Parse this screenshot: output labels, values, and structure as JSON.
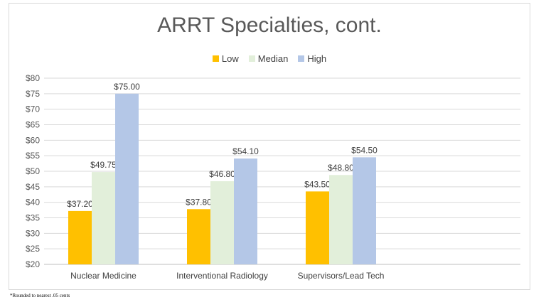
{
  "chart_data": {
    "type": "bar",
    "title": "ARRT Specialties, cont.",
    "categories": [
      "Nuclear Medicine",
      "Interventional Radiology",
      "Supervisors/Lead Tech"
    ],
    "series": [
      {
        "name": "Low",
        "color": "#ffc000",
        "values": [
          37.2,
          37.8,
          43.5
        ],
        "labels": [
          "$37.20",
          "$37.80",
          "$43.50"
        ]
      },
      {
        "name": "Median",
        "color": "#e2efda",
        "values": [
          49.75,
          46.8,
          48.8
        ],
        "labels": [
          "$49.75",
          "$46.80",
          "$48.80"
        ]
      },
      {
        "name": "High",
        "color": "#b4c7e7",
        "values": [
          75.0,
          54.1,
          54.5
        ],
        "labels": [
          "$75.00",
          "$54.10",
          "$54.50"
        ]
      }
    ],
    "ylim": [
      20,
      80
    ],
    "y_ticks": [
      "$20",
      "$25",
      "$30",
      "$35",
      "$40",
      "$45",
      "$50",
      "$55",
      "$60",
      "$65",
      "$70",
      "$75",
      "$80"
    ],
    "grid": true,
    "legend_position": "top"
  },
  "footnote": "*Rounded to nearest .05 cents"
}
